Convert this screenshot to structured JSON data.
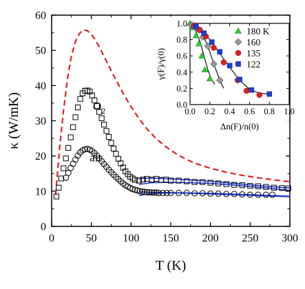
{
  "chart_data": [
    {
      "type": "scatter",
      "xlabel": "T (K)",
      "ylabel": "κ (W/mK)",
      "xlim": [
        0,
        300
      ],
      "ylim": [
        0,
        60
      ],
      "xticks": [
        "0",
        "50",
        "100",
        "150",
        "200",
        "250",
        "300"
      ],
      "yticks": [
        "0",
        "10",
        "20",
        "30",
        "40",
        "50",
        "60"
      ],
      "grid": false,
      "annotations": [
        {
          "text": "O",
          "sub": "2",
          "x": 52,
          "y": 33
        },
        {
          "text": "air",
          "x": 48,
          "y": 18.5
        },
        {
          "text": "γ=0",
          "x": 130,
          "y": 31
        }
      ],
      "series": [
        {
          "marker": "square-open",
          "color": "#000000",
          "points": [
            [
              6,
              8.5
            ],
            [
              9,
              11
            ],
            [
              12,
              13.6
            ],
            [
              15,
              16.5
            ],
            [
              18,
              19.3
            ],
            [
              21,
              22.3
            ],
            [
              24,
              25.3
            ],
            [
              27,
              28.2
            ],
            [
              30,
              31
            ],
            [
              33,
              33.8
            ],
            [
              36,
              36.2
            ],
            [
              39,
              37.8
            ],
            [
              42,
              38.5
            ],
            [
              45,
              38.6
            ],
            [
              48,
              38.3
            ],
            [
              51,
              37.2
            ],
            [
              54,
              35.8
            ],
            [
              57,
              34.2
            ],
            [
              60,
              32.5
            ],
            [
              63,
              30.7
            ],
            [
              66,
              28.9
            ],
            [
              69,
              27.1
            ],
            [
              72,
              25.4
            ],
            [
              75,
              23.7
            ],
            [
              78,
              22.1
            ],
            [
              81,
              20.6
            ],
            [
              84,
              19.2
            ],
            [
              87,
              17.9
            ],
            [
              90,
              16.7
            ],
            [
              93,
              15.6
            ],
            [
              96,
              14.8
            ],
            [
              99,
              14.1
            ],
            [
              102,
              13.6
            ],
            [
              105,
              13.2
            ],
            [
              110,
              13.0
            ],
            [
              115,
              13.3
            ],
            [
              120,
              13.5
            ],
            [
              126,
              13.3
            ],
            [
              132,
              13.5
            ],
            [
              138,
              13.2
            ],
            [
              144,
              13.3
            ],
            [
              150,
              13.0
            ],
            [
              160,
              13.0
            ],
            [
              170,
              12.8
            ],
            [
              180,
              12.6
            ],
            [
              190,
              12.6
            ],
            [
              200,
              12.4
            ],
            [
              210,
              12.2
            ],
            [
              220,
              12.0
            ],
            [
              230,
              11.8
            ],
            [
              240,
              11.7
            ],
            [
              250,
              11.5
            ],
            [
              260,
              11.4
            ],
            [
              270,
              11.2
            ],
            [
              280,
              11.0
            ],
            [
              290,
              10.9
            ],
            [
              298,
              10.8
            ]
          ]
        },
        {
          "marker": "circle-open",
          "color": "#000000",
          "points": [
            [
              18,
              13.8
            ],
            [
              21,
              15.2
            ],
            [
              24,
              16.6
            ],
            [
              27,
              17.8
            ],
            [
              30,
              19.0
            ],
            [
              33,
              20.1
            ],
            [
              36,
              21.0
            ],
            [
              39,
              21.6
            ],
            [
              42,
              21.9
            ],
            [
              45,
              22.0
            ],
            [
              48,
              21.8
            ],
            [
              51,
              21.4
            ],
            [
              54,
              20.8
            ],
            [
              57,
              20.1
            ],
            [
              60,
              19.3
            ],
            [
              63,
              18.5
            ],
            [
              66,
              17.7
            ],
            [
              69,
              16.9
            ],
            [
              72,
              16.1
            ],
            [
              75,
              15.4
            ],
            [
              78,
              14.7
            ],
            [
              81,
              14.0
            ],
            [
              84,
              13.4
            ],
            [
              87,
              12.8
            ],
            [
              90,
              12.2
            ],
            [
              93,
              11.7
            ],
            [
              96,
              11.3
            ],
            [
              99,
              10.9
            ],
            [
              102,
              10.6
            ],
            [
              105,
              10.4
            ],
            [
              108,
              10.2
            ],
            [
              111,
              10.0
            ],
            [
              114,
              9.9
            ],
            [
              117,
              9.8
            ],
            [
              120,
              9.7
            ],
            [
              123,
              9.7
            ],
            [
              126,
              9.6
            ],
            [
              129,
              9.6
            ],
            [
              132,
              9.6
            ],
            [
              135,
              9.5
            ],
            [
              140,
              9.5
            ],
            [
              145,
              9.5
            ],
            [
              150,
              9.5
            ],
            [
              160,
              9.5
            ],
            [
              170,
              9.5
            ],
            [
              180,
              9.4
            ],
            [
              190,
              9.4
            ],
            [
              200,
              9.3
            ],
            [
              210,
              9.3
            ],
            [
              220,
              9.2
            ],
            [
              230,
              9.2
            ],
            [
              240,
              9.1
            ],
            [
              250,
              9.0
            ],
            [
              260,
              9.0
            ],
            [
              270,
              9.0
            ],
            [
              278,
              9.0
            ]
          ]
        }
      ],
      "lines": [
        {
          "label": "γ=0",
          "color": "#e02020",
          "style": "dashed",
          "points": [
            [
              5,
              9
            ],
            [
              10,
              22
            ],
            [
              15,
              33
            ],
            [
              20,
              42
            ],
            [
              25,
              48.5
            ],
            [
              30,
              52.5
            ],
            [
              35,
              54.8
            ],
            [
              40,
              55.8
            ],
            [
              45,
              55.6
            ],
            [
              50,
              54.5
            ],
            [
              55,
              53
            ],
            [
              60,
              51
            ],
            [
              70,
              46.5
            ],
            [
              80,
              42
            ],
            [
              90,
              37.8
            ],
            [
              100,
              34
            ],
            [
              110,
              30.6
            ],
            [
              120,
              27.7
            ],
            [
              130,
              25.3
            ],
            [
              140,
              23.3
            ],
            [
              150,
              21.6
            ],
            [
              160,
              20.2
            ],
            [
              170,
              19
            ],
            [
              180,
              18
            ],
            [
              190,
              17.2
            ],
            [
              200,
              16.5
            ],
            [
              220,
              15.4
            ],
            [
              240,
              14.5
            ],
            [
              260,
              13.8
            ],
            [
              280,
              13.2
            ],
            [
              300,
              12.7
            ]
          ]
        },
        {
          "color": "#1f3fd0",
          "style": "solid",
          "points": [
            [
              110,
              13.6
            ],
            [
              130,
              13.7
            ],
            [
              150,
              13.5
            ],
            [
              175,
              13.2
            ],
            [
              200,
              12.8
            ],
            [
              225,
              12.3
            ],
            [
              250,
              11.8
            ],
            [
              275,
              11.3
            ],
            [
              300,
              10.9
            ]
          ]
        },
        {
          "color": "#1f3fd0",
          "style": "solid",
          "points": [
            [
              110,
              11.9
            ],
            [
              125,
              12.4
            ],
            [
              150,
              12.5
            ],
            [
              175,
              12.4
            ],
            [
              200,
              12.2
            ],
            [
              225,
              11.8
            ],
            [
              250,
              11.3
            ],
            [
              275,
              10.8
            ],
            [
              300,
              10.2
            ]
          ]
        },
        {
          "color": "#1f3fd0",
          "style": "solid",
          "points": [
            [
              110,
              9.8
            ],
            [
              125,
              9.7
            ],
            [
              150,
              9.6
            ],
            [
              175,
              9.5
            ],
            [
              200,
              9.4
            ],
            [
              225,
              9.2
            ],
            [
              250,
              9.0
            ],
            [
              275,
              8.8
            ],
            [
              300,
              8.6
            ]
          ]
        },
        {
          "color": "#1f3fd0",
          "style": "solid",
          "points": [
            [
              110,
              8.7
            ],
            [
              120,
              9.2
            ],
            [
              135,
              9.5
            ],
            [
              150,
              9.5
            ],
            [
              175,
              9.4
            ],
            [
              200,
              9.2
            ],
            [
              225,
              9.0
            ],
            [
              250,
              8.8
            ],
            [
              275,
              8.6
            ],
            [
              300,
              8.4
            ]
          ]
        }
      ]
    },
    {
      "type": "scatter",
      "inset": true,
      "xlabel": "Δn(F)/n(0)",
      "ylabel": "γ(F)/γ(0)",
      "xlim": [
        0,
        1.0
      ],
      "ylim": [
        0,
        1.0
      ],
      "xticks": [
        "0.0",
        "0.2",
        "0.4",
        "0.6",
        "0.8",
        "1.0"
      ],
      "yticks": [
        "0.0",
        "0.2",
        "0.4",
        "0.6",
        "0.8",
        "1.0"
      ],
      "legend": "right",
      "series": [
        {
          "name": "180 K",
          "marker": "triangle",
          "color": "#33cc33",
          "points": [
            [
              0,
              1.0
            ],
            [
              0.03,
              0.95
            ],
            [
              0.06,
              0.85
            ],
            [
              0.09,
              0.75
            ],
            [
              0.12,
              0.6
            ],
            [
              0.15,
              0.43
            ],
            [
              0.2,
              0.32
            ]
          ]
        },
        {
          "name": "160",
          "marker": "diamond",
          "color": "#999999",
          "points": [
            [
              0.02,
              0.98
            ],
            [
              0.05,
              0.97
            ],
            [
              0.09,
              0.92
            ],
            [
              0.13,
              0.83
            ],
            [
              0.18,
              0.72
            ],
            [
              0.24,
              0.5
            ],
            [
              0.3,
              0.3
            ]
          ]
        },
        {
          "name": "135",
          "marker": "circle",
          "color": "#e02020",
          "points": [
            [
              0.04,
              0.97
            ],
            [
              0.1,
              0.92
            ],
            [
              0.16,
              0.84
            ],
            [
              0.24,
              0.7
            ],
            [
              0.34,
              0.52
            ],
            [
              0.48,
              0.3
            ],
            [
              0.57,
              0.17
            ],
            [
              0.7,
              0.12
            ]
          ]
        },
        {
          "name": "122",
          "marker": "square",
          "color": "#1f3fd0",
          "points": [
            [
              0.06,
              0.96
            ],
            [
              0.14,
              0.88
            ],
            [
              0.22,
              0.77
            ],
            [
              0.3,
              0.65
            ],
            [
              0.4,
              0.48
            ],
            [
              0.5,
              0.31
            ],
            [
              0.62,
              0.18
            ],
            [
              0.8,
              0.13
            ]
          ]
        }
      ],
      "lines": [
        {
          "color": "#000000",
          "points": [
            [
              0,
              1.0
            ],
            [
              0.05,
              0.93
            ],
            [
              0.1,
              0.78
            ],
            [
              0.14,
              0.6
            ],
            [
              0.18,
              0.43
            ],
            [
              0.22,
              0.3
            ],
            [
              0.25,
              0.25
            ]
          ]
        },
        {
          "color": "#000000",
          "points": [
            [
              0.05,
              0.97
            ],
            [
              0.12,
              0.88
            ],
            [
              0.18,
              0.72
            ],
            [
              0.24,
              0.5
            ],
            [
              0.3,
              0.3
            ],
            [
              0.34,
              0.2
            ]
          ]
        },
        {
          "color": "#000000",
          "points": [
            [
              0.1,
              0.93
            ],
            [
              0.2,
              0.8
            ],
            [
              0.3,
              0.63
            ],
            [
              0.4,
              0.46
            ],
            [
              0.5,
              0.3
            ],
            [
              0.6,
              0.19
            ],
            [
              0.7,
              0.14
            ],
            [
              0.8,
              0.13
            ]
          ]
        }
      ]
    }
  ]
}
